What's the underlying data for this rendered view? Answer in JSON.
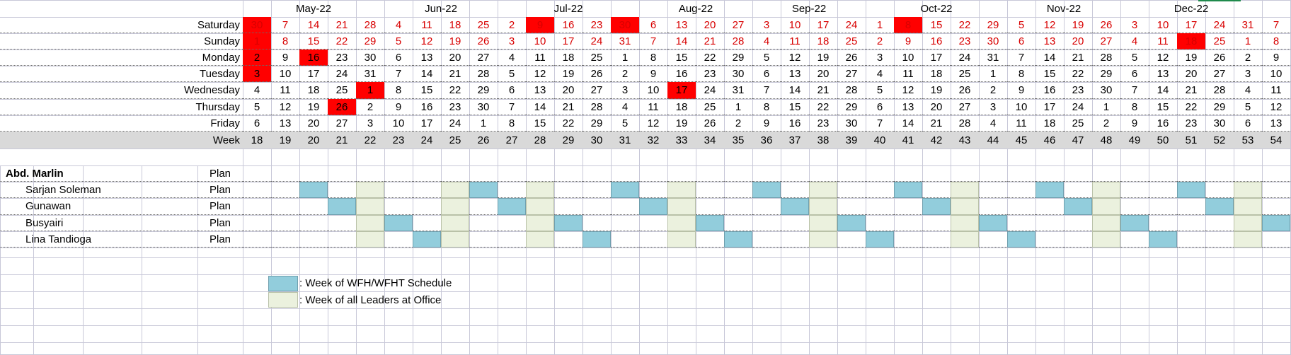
{
  "months": [
    {
      "label": "May-22",
      "span": 5
    },
    {
      "label": "Jun-22",
      "span": 4
    },
    {
      "label": "Jul-22",
      "span": 5
    },
    {
      "label": "Aug-22",
      "span": 4
    },
    {
      "label": "Sep-22",
      "span": 4
    },
    {
      "label": "Oct-22",
      "span": 5
    },
    {
      "label": "Nov-22",
      "span": 4
    },
    {
      "label": "Dec-22",
      "span": 5
    }
  ],
  "calendar": {
    "rows": [
      {
        "day": "Saturday",
        "red": true,
        "values": [
          "30",
          "7",
          "14",
          "21",
          "28",
          "4",
          "11",
          "18",
          "25",
          "2",
          "9",
          "16",
          "23",
          "30",
          "6",
          "13",
          "20",
          "27",
          "3",
          "10",
          "17",
          "24",
          "1",
          "8",
          "15",
          "22",
          "29",
          "5",
          "12",
          "19",
          "26",
          "3",
          "10",
          "17",
          "24",
          "31",
          "7"
        ],
        "highlight": [
          0,
          10,
          13,
          23
        ]
      },
      {
        "day": "Sunday",
        "red": true,
        "values": [
          "1",
          "8",
          "15",
          "22",
          "29",
          "5",
          "12",
          "19",
          "26",
          "3",
          "10",
          "17",
          "24",
          "31",
          "7",
          "14",
          "21",
          "28",
          "4",
          "11",
          "18",
          "25",
          "2",
          "9",
          "16",
          "23",
          "30",
          "6",
          "13",
          "20",
          "27",
          "4",
          "11",
          "18",
          "25",
          "1",
          "8"
        ],
        "highlight": [
          0,
          33
        ]
      },
      {
        "day": "Monday",
        "red": false,
        "values": [
          "2",
          "9",
          "16",
          "23",
          "30",
          "6",
          "13",
          "20",
          "27",
          "4",
          "11",
          "18",
          "25",
          "1",
          "8",
          "15",
          "22",
          "29",
          "5",
          "12",
          "19",
          "26",
          "3",
          "10",
          "17",
          "24",
          "31",
          "7",
          "14",
          "21",
          "28",
          "5",
          "12",
          "19",
          "26",
          "2",
          "9"
        ],
        "highlight": [
          0,
          2
        ]
      },
      {
        "day": "Tuesday",
        "red": false,
        "values": [
          "3",
          "10",
          "17",
          "24",
          "31",
          "7",
          "14",
          "21",
          "28",
          "5",
          "12",
          "19",
          "26",
          "2",
          "9",
          "16",
          "23",
          "30",
          "6",
          "13",
          "20",
          "27",
          "4",
          "11",
          "18",
          "25",
          "1",
          "8",
          "15",
          "22",
          "29",
          "6",
          "13",
          "20",
          "27",
          "3",
          "10"
        ],
        "highlight": [
          0
        ]
      },
      {
        "day": "Wednesday",
        "red": false,
        "values": [
          "4",
          "11",
          "18",
          "25",
          "1",
          "8",
          "15",
          "22",
          "29",
          "6",
          "13",
          "20",
          "27",
          "3",
          "10",
          "17",
          "24",
          "31",
          "7",
          "14",
          "21",
          "28",
          "5",
          "12",
          "19",
          "26",
          "2",
          "9",
          "16",
          "23",
          "30",
          "7",
          "14",
          "21",
          "28",
          "4",
          "11"
        ],
        "highlight": [
          4,
          15
        ]
      },
      {
        "day": "Thursday",
        "red": false,
        "values": [
          "5",
          "12",
          "19",
          "26",
          "2",
          "9",
          "16",
          "23",
          "30",
          "7",
          "14",
          "21",
          "28",
          "4",
          "11",
          "18",
          "25",
          "1",
          "8",
          "15",
          "22",
          "29",
          "6",
          "13",
          "20",
          "27",
          "3",
          "10",
          "17",
          "24",
          "1",
          "8",
          "15",
          "22",
          "29",
          "5",
          "12"
        ],
        "highlight": [
          3
        ]
      },
      {
        "day": "Friday",
        "red": false,
        "values": [
          "6",
          "13",
          "20",
          "27",
          "3",
          "10",
          "17",
          "24",
          "1",
          "8",
          "15",
          "22",
          "29",
          "5",
          "12",
          "19",
          "26",
          "2",
          "9",
          "16",
          "23",
          "30",
          "7",
          "14",
          "21",
          "28",
          "4",
          "11",
          "18",
          "25",
          "2",
          "9",
          "16",
          "23",
          "30",
          "6",
          "13"
        ],
        "highlight": []
      }
    ],
    "week_label": "Week",
    "weeks": [
      "18",
      "19",
      "20",
      "21",
      "22",
      "23",
      "24",
      "25",
      "26",
      "27",
      "28",
      "29",
      "30",
      "31",
      "32",
      "33",
      "34",
      "35",
      "36",
      "37",
      "38",
      "39",
      "40",
      "41",
      "42",
      "43",
      "44",
      "45",
      "46",
      "47",
      "48",
      "49",
      "50",
      "51",
      "52",
      "53",
      "54"
    ]
  },
  "team": {
    "leader": "Abd. Marlin",
    "plan_label": "Plan",
    "members": [
      {
        "name": "Sarjan Soleman",
        "wfh": [
          2,
          8,
          13,
          18,
          23,
          28,
          33
        ]
      },
      {
        "name": "Gunawan",
        "wfh": [
          3,
          9,
          14,
          19,
          24,
          29,
          34
        ]
      },
      {
        "name": "Busyairi",
        "wfh": [
          5,
          11,
          16,
          21,
          26,
          31,
          36
        ]
      },
      {
        "name": "Lina Tandioga",
        "wfh": [
          6,
          12,
          17,
          22,
          27,
          32
        ]
      }
    ],
    "office_weeks": [
      4,
      7,
      10,
      15,
      20,
      25,
      30,
      35
    ]
  },
  "legend": {
    "wfh_label": ": Week of WFH/WFHT Schedule",
    "office_label": ": Week of all Leaders at Office",
    "wfh_color": "#92cddc",
    "office_color": "#ebf1de"
  },
  "colors": {
    "highlight": "#ff0000",
    "red_text": "#d80000",
    "week_row": "#d9d9d9",
    "grid": "#c8c8d8"
  }
}
